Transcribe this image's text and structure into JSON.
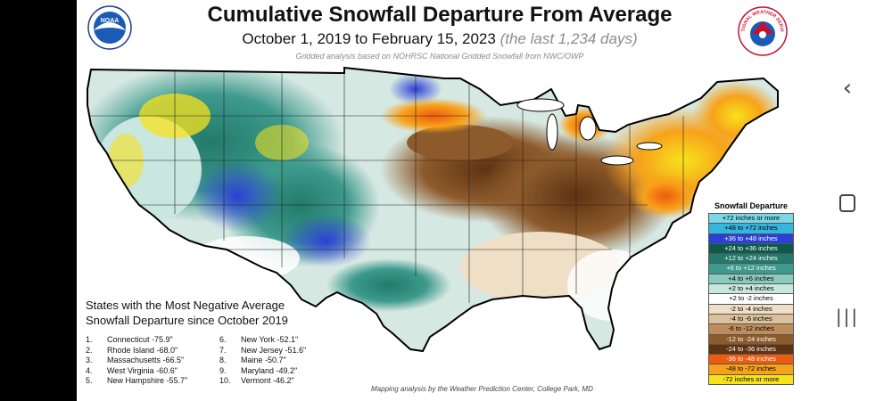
{
  "title": "Cumulative Snowfall Departure From Average",
  "subtitle": "October 1, 2019 to February 15, 2023",
  "subtitle_note": "(the last 1,234 days)",
  "source_note": "Gridded analysis based on NOHRSC National Gridded Snowfall from NWC/OWP",
  "logos": {
    "noaa": "NOAA",
    "nws": "NATIONAL WEATHER SERVICE"
  },
  "legend": {
    "title": "Snowfall  Departure",
    "items": [
      {
        "label": "+72 inches or more",
        "color": "#7ad7e6",
        "text_color": "#000"
      },
      {
        "label": "+48 to +72 inches",
        "color": "#35b6e0",
        "text_color": "#000"
      },
      {
        "label": "+36 to +48 inches",
        "color": "#2b3fd6",
        "text_color": "#fff"
      },
      {
        "label": "+24 to +36 inches",
        "color": "#0c5a4a",
        "text_color": "#fff"
      },
      {
        "label": "+12 to +24 inches",
        "color": "#237a6a",
        "text_color": "#fff"
      },
      {
        "label": "+6 to +12 inches",
        "color": "#3d9a8c",
        "text_color": "#fff"
      },
      {
        "label": "+4 to +6 inches",
        "color": "#8cc9bf",
        "text_color": "#000"
      },
      {
        "label": "+2 to +4 inches",
        "color": "#c9e6e0",
        "text_color": "#000"
      },
      {
        "label": "+2 to -2 inches",
        "color": "#ffffff",
        "text_color": "#000"
      },
      {
        "label": "-2 to -4 inches",
        "color": "#efdfc6",
        "text_color": "#000"
      },
      {
        "label": "-4 to -6 inches",
        "color": "#dcc09a",
        "text_color": "#000"
      },
      {
        "label": "-6 to -12 inches",
        "color": "#bd8d5d",
        "text_color": "#000"
      },
      {
        "label": "-12 to -24 inches",
        "color": "#8d5a2b",
        "text_color": "#fff"
      },
      {
        "label": "-24 to -36 inches",
        "color": "#5e3312",
        "text_color": "#fff"
      },
      {
        "label": "-36 to -48 inches",
        "color": "#ee5a10",
        "text_color": "#fff"
      },
      {
        "label": "-48 to -72 inches",
        "color": "#f7a21a",
        "text_color": "#000"
      },
      {
        "label": "-72 inches or more",
        "color": "#f7e21c",
        "text_color": "#000"
      }
    ]
  },
  "stats": {
    "heading_line1": "States with the Most Negative Average",
    "heading_line2": "Snowfall Departure since October 2019",
    "rankings": [
      {
        "rank": "1.",
        "text": "Connecticut -75.9\""
      },
      {
        "rank": "6.",
        "text": "New York -52.1\""
      },
      {
        "rank": "2.",
        "text": "Rhode Island -68.0\""
      },
      {
        "rank": "7.",
        "text": "New Jersey -51.6\""
      },
      {
        "rank": "3.",
        "text": "Massachusetts -66.5\""
      },
      {
        "rank": "8.",
        "text": "Maine -50.7\""
      },
      {
        "rank": "4.",
        "text": "West Virginia -60.6\""
      },
      {
        "rank": "9.",
        "text": "Maryland -49.2\""
      },
      {
        "rank": "5.",
        "text": "New Hampshire -55.7\""
      },
      {
        "rank": "10.",
        "text": "Vermont -46.2\""
      }
    ]
  },
  "credit": "Mapping analysis by the Weather Prediction Center, College Park, MD",
  "phone_nav": {
    "back": "‹",
    "recent": "|||"
  }
}
